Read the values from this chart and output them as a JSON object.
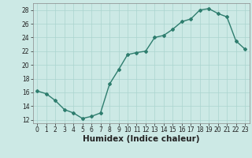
{
  "x": [
    0,
    1,
    2,
    3,
    4,
    5,
    6,
    7,
    8,
    9,
    10,
    11,
    12,
    13,
    14,
    15,
    16,
    17,
    18,
    19,
    20,
    21,
    22,
    23
  ],
  "y": [
    16.2,
    15.8,
    14.8,
    13.5,
    13.0,
    12.2,
    12.5,
    13.0,
    17.2,
    19.3,
    21.5,
    21.8,
    22.0,
    24.0,
    24.3,
    25.2,
    26.3,
    26.7,
    28.0,
    28.2,
    27.5,
    27.0,
    23.5,
    22.3
  ],
  "xlabel": "Humidex (Indice chaleur)",
  "xlim": [
    -0.5,
    23.5
  ],
  "ylim": [
    11.5,
    29
  ],
  "yticks": [
    12,
    14,
    16,
    18,
    20,
    22,
    24,
    26,
    28
  ],
  "xticks": [
    0,
    1,
    2,
    3,
    4,
    5,
    6,
    7,
    8,
    9,
    10,
    11,
    12,
    13,
    14,
    15,
    16,
    17,
    18,
    19,
    20,
    21,
    22,
    23
  ],
  "line_color": "#2e7d6e",
  "marker": "D",
  "marker_size": 2.0,
  "line_width": 1.0,
  "bg_color": "#cce9e5",
  "grid_color": "#aad4cf",
  "tick_label_fontsize": 5.5,
  "xlabel_fontsize": 7.5
}
